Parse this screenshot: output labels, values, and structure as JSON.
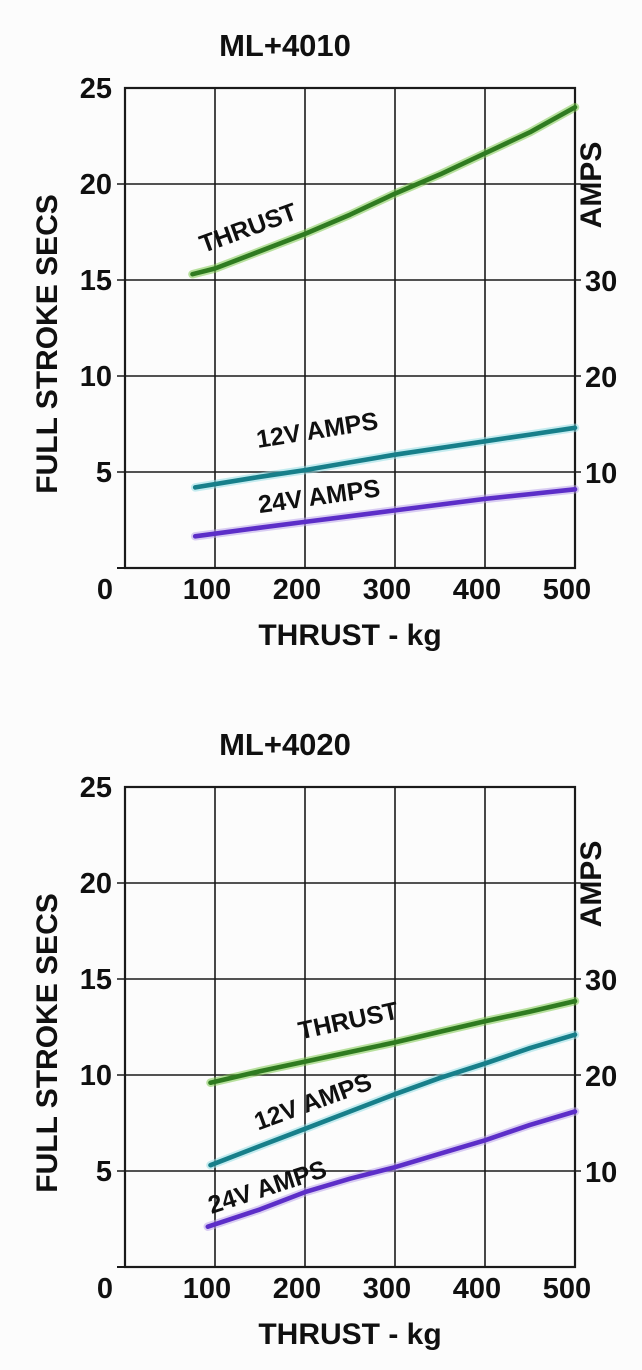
{
  "page": {
    "background": "#fcfcfc",
    "text_color": "#101010",
    "grid_color": "#1a1a1a"
  },
  "chart_data": [
    {
      "type": "line",
      "title": "ML+4010",
      "x_axis": {
        "title": "THRUST - kg",
        "min": 0,
        "max": 500,
        "ticks": [
          0,
          100,
          200,
          300,
          400,
          500
        ],
        "gridlines": [
          100,
          200,
          300,
          400
        ],
        "grid": "on"
      },
      "y_left": {
        "title": "FULL STROKE SECS",
        "min": 0,
        "max": 25,
        "ticks": [
          5,
          10,
          15,
          20,
          25
        ],
        "gridlines": [
          5,
          10,
          15,
          20
        ],
        "grid": "on"
      },
      "y_right": {
        "title": "AMPS",
        "ticks": [
          10,
          20,
          30
        ],
        "amps_per_left_unit": 2
      },
      "legend": "labels drawn along lines",
      "series": [
        {
          "name": "THRUST",
          "axis": "left",
          "units": "FULL STROKE SECS",
          "color": "#2f7b20",
          "halo_color": "#7ec94f",
          "points": [
            [
              75,
              15.3
            ],
            [
              100,
              15.6
            ],
            [
              150,
              16.5
            ],
            [
              200,
              17.4
            ],
            [
              250,
              18.4
            ],
            [
              300,
              19.5
            ],
            [
              350,
              20.5
            ],
            [
              400,
              21.6
            ],
            [
              450,
              22.7
            ],
            [
              500,
              24.0
            ]
          ],
          "label": {
            "text": "THRUST",
            "kg": 140,
            "secs": 17.3,
            "angle_deg": -20
          }
        },
        {
          "name": "12V AMPS",
          "axis": "right",
          "units": "AMPS",
          "color": "#177f8a",
          "halo_color": "#93dce4",
          "points": [
            [
              78,
              8.4
            ],
            [
              150,
              9.5
            ],
            [
              200,
              10.2
            ],
            [
              250,
              11.0
            ],
            [
              300,
              11.8
            ],
            [
              350,
              12.5
            ],
            [
              400,
              13.2
            ],
            [
              450,
              13.9
            ],
            [
              500,
              14.6
            ]
          ],
          "label": {
            "text": "12V AMPS",
            "kg": 215,
            "secs": 6.75,
            "angle_deg": -9
          }
        },
        {
          "name": "24V AMPS",
          "axis": "right",
          "units": "AMPS",
          "color": "#5c2ec8",
          "halo_color": "#b9a4ea",
          "points": [
            [
              78,
              3.3
            ],
            [
              150,
              4.2
            ],
            [
              200,
              4.8
            ],
            [
              250,
              5.4
            ],
            [
              300,
              6.0
            ],
            [
              350,
              6.6
            ],
            [
              400,
              7.2
            ],
            [
              450,
              7.7
            ],
            [
              500,
              8.2
            ]
          ],
          "label": {
            "text": "24V AMPS",
            "kg": 217,
            "secs": 3.3,
            "angle_deg": -8
          }
        }
      ]
    },
    {
      "type": "line",
      "title": "ML+4020",
      "x_axis": {
        "title": "THRUST - kg",
        "min": 0,
        "max": 500,
        "ticks": [
          0,
          100,
          200,
          300,
          400,
          500
        ],
        "gridlines": [
          100,
          200,
          300,
          400
        ],
        "grid": "on"
      },
      "y_left": {
        "title": "FULL STROKE SECS",
        "min": 0,
        "max": 25,
        "ticks": [
          5,
          10,
          15,
          20,
          25
        ],
        "gridlines": [
          5,
          10,
          15,
          20
        ],
        "grid": "on"
      },
      "y_right": {
        "title": "AMPS",
        "ticks": [
          10,
          20,
          30
        ],
        "amps_per_left_unit": 2
      },
      "legend": "labels drawn along lines",
      "series": [
        {
          "name": "THRUST",
          "axis": "left",
          "units": "FULL STROKE SECS",
          "color": "#2f7b20",
          "halo_color": "#7ec94f",
          "points": [
            [
              95,
              9.6
            ],
            [
              150,
              10.2
            ],
            [
              200,
              10.7
            ],
            [
              250,
              11.2
            ],
            [
              300,
              11.7
            ],
            [
              350,
              12.25
            ],
            [
              400,
              12.8
            ],
            [
              450,
              13.3
            ],
            [
              500,
              13.85
            ]
          ],
          "label": {
            "text": "THRUST",
            "kg": 250,
            "secs": 12.4,
            "angle_deg": -12
          }
        },
        {
          "name": "12V AMPS",
          "axis": "right",
          "units": "AMPS",
          "color": "#177f8a",
          "halo_color": "#93dce4",
          "points": [
            [
              95,
              10.6
            ],
            [
              150,
              12.6
            ],
            [
              200,
              14.4
            ],
            [
              250,
              16.2
            ],
            [
              300,
              18.0
            ],
            [
              350,
              19.7
            ],
            [
              400,
              21.2
            ],
            [
              450,
              22.8
            ],
            [
              500,
              24.2
            ]
          ],
          "label": {
            "text": "12V AMPS",
            "kg": 212,
            "secs": 8.2,
            "angle_deg": -20
          }
        },
        {
          "name": "24V AMPS",
          "axis": "right",
          "units": "AMPS",
          "color": "#5c2ec8",
          "halo_color": "#b9a4ea",
          "points": [
            [
              92,
              4.2
            ],
            [
              150,
              6.0
            ],
            [
              200,
              7.8
            ],
            [
              250,
              9.2
            ],
            [
              300,
              10.4
            ],
            [
              350,
              11.8
            ],
            [
              400,
              13.2
            ],
            [
              450,
              14.8
            ],
            [
              500,
              16.2
            ]
          ],
          "label": {
            "text": "24V AMPS",
            "kg": 161,
            "secs": 3.75,
            "angle_deg": -18
          }
        }
      ]
    }
  ]
}
